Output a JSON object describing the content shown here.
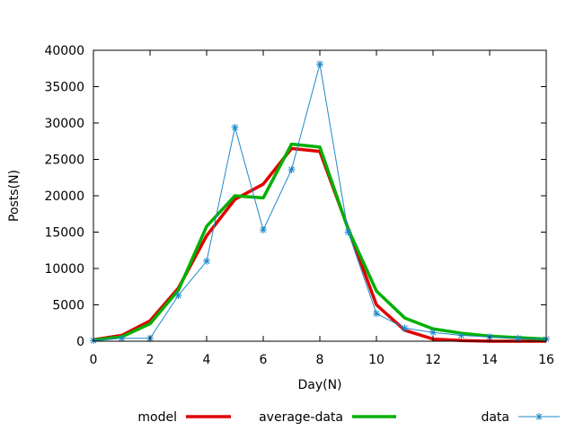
{
  "chart_data": {
    "type": "line",
    "title": "",
    "xlabel": "Day(N)",
    "ylabel": "Posts(N)",
    "xlim": [
      0,
      16
    ],
    "ylim": [
      0,
      40000
    ],
    "x_ticks": [
      0,
      2,
      4,
      6,
      8,
      10,
      12,
      14,
      16
    ],
    "y_ticks": [
      0,
      5000,
      10000,
      15000,
      20000,
      25000,
      30000,
      35000,
      40000
    ],
    "grid": false,
    "legend_position": "bottom",
    "x": [
      0,
      1,
      2,
      3,
      4,
      5,
      6,
      7,
      8,
      9,
      10,
      11,
      12,
      13,
      14,
      15,
      16
    ],
    "series": [
      {
        "name": "model",
        "color": "#e00000",
        "style": "line",
        "values": [
          200,
          800,
          2800,
          7300,
          14500,
          19500,
          21600,
          26500,
          26100,
          15500,
          5000,
          1500,
          300,
          100,
          0,
          0,
          0
        ]
      },
      {
        "name": "average-data",
        "color": "#00b000",
        "style": "line",
        "values": [
          150,
          600,
          2400,
          7000,
          15800,
          20000,
          19700,
          27100,
          26700,
          15400,
          6900,
          3200,
          1700,
          1100,
          700,
          500,
          300
        ]
      },
      {
        "name": "data",
        "color": "#1e88c8",
        "style": "line-star",
        "values": [
          100,
          400,
          400,
          6300,
          11000,
          29400,
          15300,
          23600,
          38100,
          15000,
          3800,
          1800,
          1200,
          800,
          600,
          400,
          300
        ]
      }
    ]
  }
}
